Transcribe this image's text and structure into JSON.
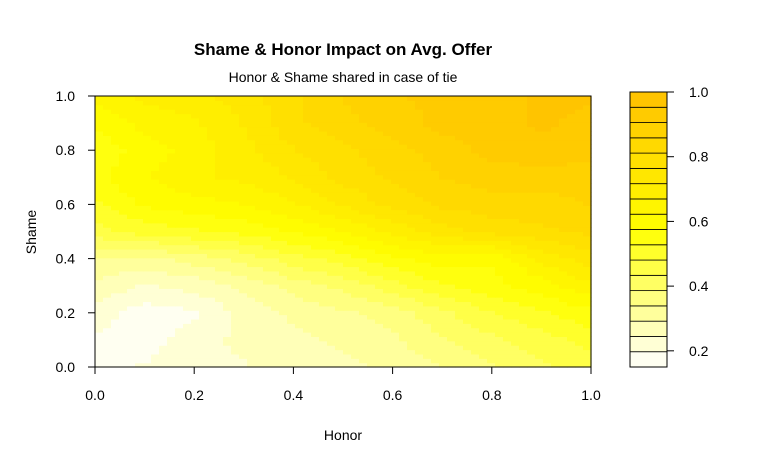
{
  "chart_data": {
    "type": "heatmap",
    "title": "Shame & Honor Impact on Avg. Offer",
    "subtitle": "Honor & Shame shared in case of tie",
    "xlabel": "Honor",
    "ylabel": "Shame",
    "xlim": [
      0,
      1
    ],
    "ylim": [
      0,
      1
    ],
    "x_ticks": [
      "0.0",
      "0.2",
      "0.4",
      "0.6",
      "0.8",
      "1.0"
    ],
    "y_ticks": [
      "0.0",
      "0.2",
      "0.4",
      "0.6",
      "0.8",
      "1.0"
    ],
    "x": [
      0,
      0.1,
      0.2,
      0.3,
      0.4,
      0.5,
      0.6,
      0.7,
      0.8,
      0.9,
      1.0
    ],
    "y": [
      0,
      0.1,
      0.2,
      0.3,
      0.4,
      0.5,
      0.6,
      0.7,
      0.8,
      0.9,
      1.0
    ],
    "z": [
      [
        0.19,
        0.2,
        0.22,
        0.24,
        0.26,
        0.28,
        0.3,
        0.34,
        0.38,
        0.42,
        0.46
      ],
      [
        0.19,
        0.18,
        0.22,
        0.26,
        0.28,
        0.3,
        0.33,
        0.38,
        0.42,
        0.46,
        0.5
      ],
      [
        0.22,
        0.17,
        0.19,
        0.26,
        0.3,
        0.33,
        0.36,
        0.42,
        0.48,
        0.52,
        0.56
      ],
      [
        0.28,
        0.24,
        0.26,
        0.3,
        0.36,
        0.4,
        0.46,
        0.52,
        0.56,
        0.6,
        0.66
      ],
      [
        0.34,
        0.32,
        0.36,
        0.4,
        0.46,
        0.5,
        0.56,
        0.6,
        0.58,
        0.68,
        0.74
      ],
      [
        0.46,
        0.5,
        0.52,
        0.54,
        0.58,
        0.62,
        0.68,
        0.74,
        0.78,
        0.8,
        0.82
      ],
      [
        0.52,
        0.58,
        0.6,
        0.62,
        0.66,
        0.72,
        0.78,
        0.82,
        0.84,
        0.84,
        0.86
      ],
      [
        0.56,
        0.62,
        0.66,
        0.68,
        0.72,
        0.78,
        0.82,
        0.86,
        0.88,
        0.88,
        0.88
      ],
      [
        0.54,
        0.6,
        0.64,
        0.7,
        0.76,
        0.8,
        0.84,
        0.88,
        0.92,
        0.94,
        0.92
      ],
      [
        0.58,
        0.64,
        0.66,
        0.72,
        0.8,
        0.84,
        0.88,
        0.92,
        0.94,
        0.96,
        0.94
      ],
      [
        0.64,
        0.68,
        0.7,
        0.74,
        0.8,
        0.86,
        0.9,
        0.92,
        0.94,
        0.96,
        0.96
      ]
    ],
    "colorbar": {
      "range": [
        0.15,
        1.0
      ],
      "levels": 18,
      "ticks": [
        "0.2",
        "0.4",
        "0.6",
        "0.8",
        "1.0"
      ],
      "tick_values": [
        0.2,
        0.4,
        0.6,
        0.8,
        1.0
      ],
      "low_color": "#ffffff",
      "mid_color": "#ffff00",
      "high_color": "#ffc000"
    },
    "grid": false,
    "legend": "right"
  }
}
